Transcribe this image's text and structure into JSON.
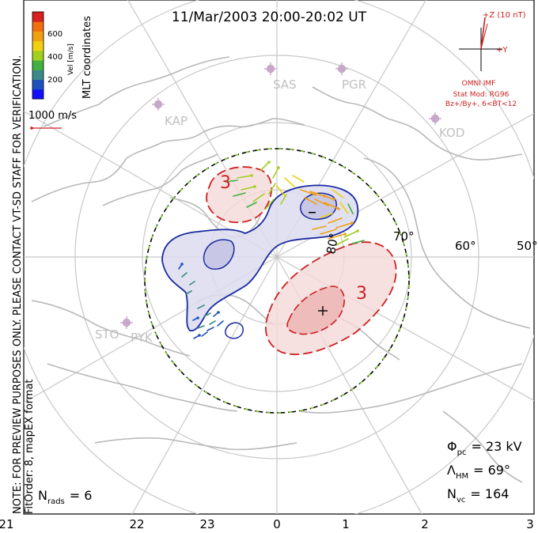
{
  "title": "11/Mar/2003 20:00-20:02 UT",
  "side_label": "MLT coordinates",
  "note_line1": "NOTE: FOR PREVIEW PURPOSES ONLY. PLEASE CONTACT VT-SD STAFF FOR VERIFICATION.",
  "note_line2": "FitOrder: 8, mapEX format",
  "colorbar": {
    "label": "Vel [m/s]",
    "ticks": [
      "600",
      "400",
      "200"
    ],
    "colors": [
      "#d82020",
      "#f07010",
      "#f0a010",
      "#f0d010",
      "#a0d020",
      "#40b040",
      "#3a8a8a",
      "#2050c0",
      "#1010ff"
    ]
  },
  "scale_vector_label": "1000 m/s",
  "imf": {
    "z_label": "+Z (10 nT)",
    "y_label": "+Y",
    "source": "OMNI IMF",
    "model_line1": "Stat Mod: RG96",
    "model_line2": "Bz+/By+, 6<BT<12"
  },
  "stations": [
    "KAP",
    "SAS",
    "PGR",
    "KOD",
    "STO",
    "PYK"
  ],
  "latitude_labels": [
    "80°",
    "70°",
    "60°",
    "50°"
  ],
  "contour_labels": [
    "3",
    "3",
    "–",
    "+"
  ],
  "stats": {
    "phi_label": "Φ",
    "phi_sub": "pc",
    "phi_value": "= 23 kV",
    "lambda_label": "Λ",
    "lambda_sub": "HM",
    "lambda_value": "= 69°",
    "nvc_label": "N",
    "nvc_sub": "vc",
    "nvc_value": "= 164",
    "nrads_label": "N",
    "nrads_sub": "rads",
    "nrads_value": "= 6"
  },
  "mlt_ticks": [
    "21",
    "22",
    "23",
    "0",
    "1",
    "2",
    "3"
  ],
  "colors": {
    "positive": "#cc2020",
    "negative": "#1a2aa0",
    "boundary_green": "#8acc30",
    "grid": "#c8c8c8",
    "coast": "#b8b8b8"
  }
}
